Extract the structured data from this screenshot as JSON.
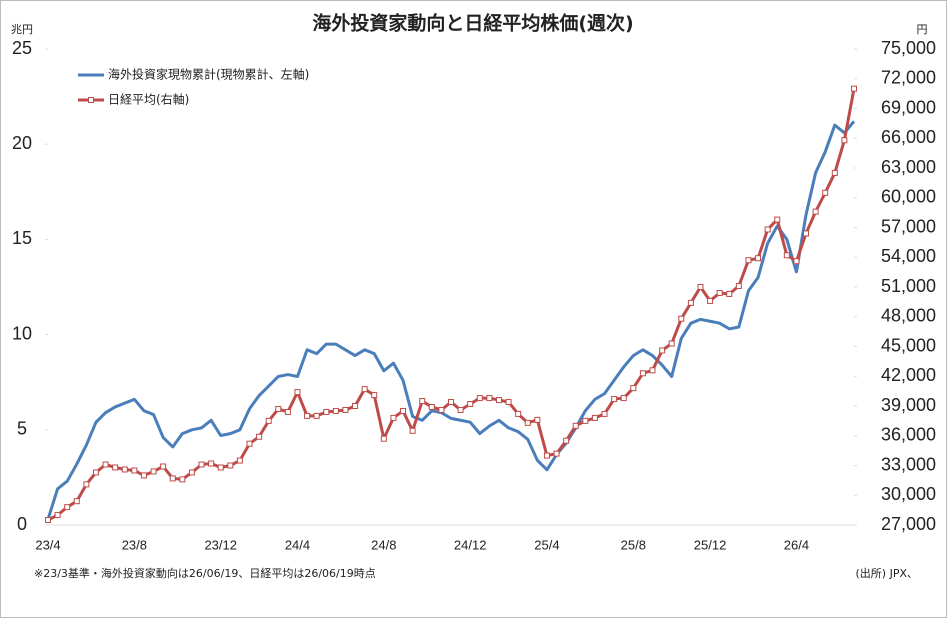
{
  "chart_data": {
    "type": "line",
    "title": "海外投資家動向と日経平均株価(週次)",
    "y_unit": "兆円",
    "y2_unit": "円",
    "footnote": "※23/3基準・海外投資家動向は26/06/19、日経平均は26/06/19時点",
    "source": "(出所) JPX、",
    "categories": [
      "23/4",
      null,
      null,
      null,
      null,
      null,
      null,
      null,
      null,
      "23/8",
      null,
      null,
      null,
      null,
      null,
      null,
      null,
      null,
      "23/12",
      null,
      null,
      null,
      null,
      null,
      null,
      null,
      "24/4",
      null,
      null,
      null,
      null,
      null,
      null,
      null,
      null,
      "24/8",
      null,
      null,
      null,
      null,
      null,
      null,
      null,
      null,
      "24/12",
      null,
      null,
      null,
      null,
      null,
      null,
      null,
      "25/4",
      null,
      null,
      null,
      null,
      null,
      null,
      null,
      null,
      "25/8",
      null,
      null,
      null,
      null,
      null,
      null,
      null,
      "25/12",
      null,
      null,
      null,
      null,
      null,
      null,
      null,
      null,
      "26/4",
      null,
      null,
      null,
      null,
      null,
      null
    ],
    "series": [
      {
        "name": "海外投資家現物累計(現物累計、左軸)",
        "color": "#4a7ebb",
        "values": [
          0.3,
          1.9,
          2.3,
          3.2,
          4.2,
          5.4,
          5.9,
          6.2,
          6.4,
          6.6,
          6.0,
          5.8,
          4.6,
          4.1,
          4.8,
          5.0,
          5.1,
          5.5,
          4.7,
          4.8,
          5.0,
          6.1,
          6.8,
          7.3,
          7.8,
          7.9,
          7.8,
          9.2,
          9.0,
          9.5,
          9.5,
          9.2,
          8.9,
          9.2,
          9.0,
          8.1,
          8.5,
          7.6,
          5.7,
          5.5,
          6.0,
          5.9,
          5.6,
          5.5,
          5.4,
          4.8,
          5.2,
          5.5,
          5.1,
          4.9,
          4.5,
          3.4,
          2.9,
          3.7,
          4.3,
          5.1,
          6.0,
          6.6,
          6.9,
          7.6,
          8.3,
          8.9,
          9.2,
          8.9,
          8.4,
          7.8,
          9.8,
          10.6,
          10.8,
          10.7,
          10.6,
          10.3,
          10.4,
          12.3,
          13.0,
          14.8,
          15.7,
          15.0,
          13.3,
          16.3,
          18.5,
          19.6,
          21.0,
          20.6,
          21.2
        ]
      },
      {
        "name": "日経平均(右軸)",
        "color": "#be4b48",
        "axis": "y2",
        "marker": "square",
        "values": [
          27500,
          28000,
          28800,
          29400,
          31100,
          32300,
          33100,
          32800,
          32600,
          32500,
          32000,
          32400,
          32900,
          31700,
          31600,
          32300,
          33100,
          33200,
          32800,
          33000,
          33500,
          35200,
          35900,
          37500,
          38700,
          38400,
          40400,
          38000,
          38000,
          38400,
          38500,
          38600,
          39000,
          40700,
          40100,
          35700,
          37800,
          38500,
          36500,
          39500,
          38900,
          38600,
          39400,
          38600,
          39200,
          39800,
          39800,
          39600,
          39400,
          38200,
          37300,
          37600,
          34000,
          34200,
          35500,
          37000,
          37500,
          37800,
          38200,
          39700,
          39800,
          40800,
          42300,
          42600,
          44600,
          45300,
          47800,
          49400,
          51000,
          49600,
          50400,
          50300,
          51100,
          53700,
          53900,
          56800,
          57800,
          54200,
          53600,
          56400,
          58600,
          60500,
          62500,
          65800,
          71000
        ]
      }
    ],
    "ylim": [
      0,
      25
    ],
    "yticks": [
      0,
      5,
      10,
      15,
      20,
      25
    ],
    "y2lim": [
      27000,
      75000
    ],
    "y2ticks": [
      {
        "value": 27000,
        "label": "27,000"
      },
      {
        "value": 30000,
        "label": "30,000"
      },
      {
        "value": 33000,
        "label": "33,000"
      },
      {
        "value": 36000,
        "label": "36,000"
      },
      {
        "value": 39000,
        "label": "39,000"
      },
      {
        "value": 42000,
        "label": "42,000"
      },
      {
        "value": 45000,
        "label": "45,000"
      },
      {
        "value": 48000,
        "label": "48,000"
      },
      {
        "value": 51000,
        "label": "51,000"
      },
      {
        "value": 54000,
        "label": "54,000"
      },
      {
        "value": 57000,
        "label": "57,000"
      },
      {
        "value": 60000,
        "label": "60,000"
      },
      {
        "value": 63000,
        "label": "63,000"
      },
      {
        "value": 66000,
        "label": "66,000"
      },
      {
        "value": 69000,
        "label": "69,000"
      },
      {
        "value": 72000,
        "label": "72,000"
      },
      {
        "value": 75000,
        "label": "75,000"
      }
    ],
    "legend": "upper left",
    "grid": false
  }
}
